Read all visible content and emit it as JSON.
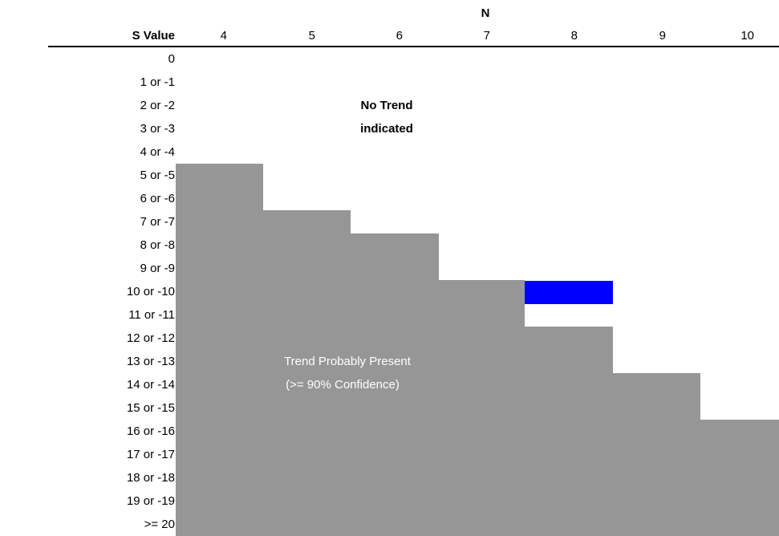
{
  "table": {
    "n_header": "N",
    "s_value_header": "S Value",
    "n_values": [
      "4",
      "5",
      "6",
      "7",
      "8",
      "9",
      "10"
    ],
    "s_rows": [
      "0",
      "1 or -1",
      "2 or -2",
      "3 or -3",
      "4 or -4",
      "5 or -5",
      "6 or -6",
      "7 or -7",
      "8 or -8",
      "9 or -9",
      "10 or -10",
      "11 or -11",
      "12 or -12",
      "13 or -13",
      "14 or -14",
      "15 or -15",
      "16 or -16",
      "17 or -17",
      "18 or -18",
      "19 or -19",
      ">= 20"
    ],
    "no_trend_line1": "No Trend",
    "no_trend_line2": "indicated",
    "trend_line1": "Trend Probably Present",
    "trend_line2": "(>= 90% Confidence)"
  },
  "colors": {
    "shaded": "#969696",
    "highlight": "#0000ff"
  }
}
